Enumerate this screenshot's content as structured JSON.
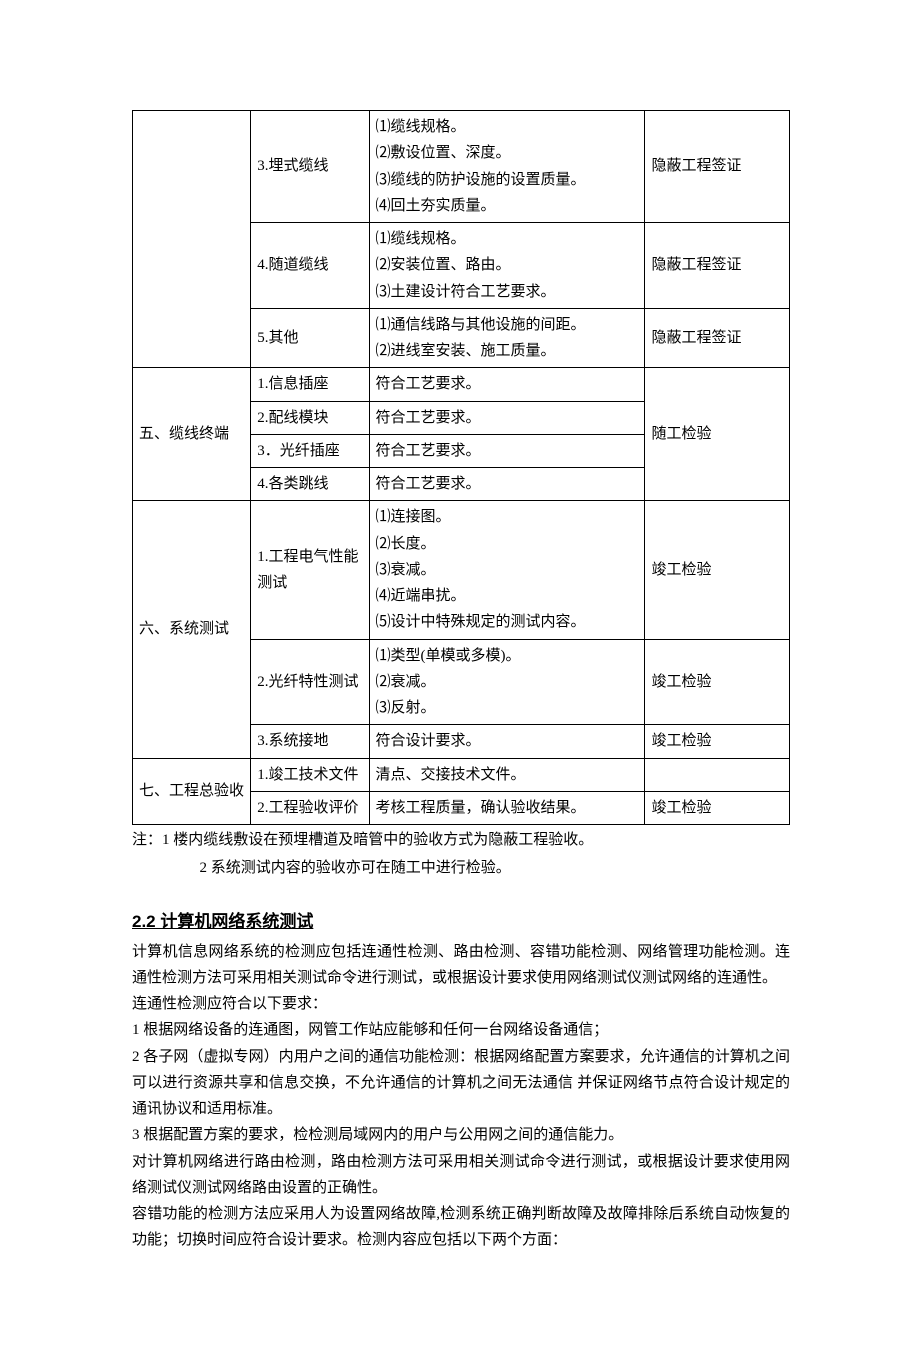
{
  "table": {
    "col_widths": [
      "18%",
      "18%",
      "42%",
      "22%"
    ],
    "border_color": "#000000",
    "font_size": 15,
    "rows": [
      {
        "c1": "",
        "c1_rowspan": 3,
        "c2": "3.埋式缆线",
        "c3": "⑴缆线规格。\n⑵敷设位置、深度。\n⑶缆线的防护设施的设置质量。\n⑷回土夯实质量。",
        "c4": "隐蔽工程签证"
      },
      {
        "c2": "4.随道缆线",
        "c3": "⑴缆线规格。\n⑵安装位置、路由。\n⑶土建设计符合工艺要求。",
        "c4": "隐蔽工程签证"
      },
      {
        "c2": "5.其他",
        "c3": "⑴通信线路与其他设施的间距。\n⑵进线室安装、施工质量。",
        "c4": "隐蔽工程签证"
      },
      {
        "c1": "五、缆线终端",
        "c1_rowspan": 4,
        "c2": "1.信息插座",
        "c3": "符合工艺要求。",
        "c4": "随工检验",
        "c4_rowspan": 4
      },
      {
        "c2": "2.配线模块",
        "c3": "符合工艺要求。"
      },
      {
        "c2": "3．光纤插座",
        "c3": "符合工艺要求。"
      },
      {
        "c2": "4.各类跳线",
        "c3": "符合工艺要求。"
      },
      {
        "c1": "六、系统测试",
        "c1_rowspan": 3,
        "c2": "1.工程电气性能测试",
        "c3": "⑴连接图。\n⑵长度。\n⑶衰减。\n⑷近端串扰。\n⑸设计中特殊规定的测试内容。",
        "c4": "竣工检验"
      },
      {
        "c2": "2.光纤特性测试",
        "c3": "⑴类型(单模或多模)。\n⑵衰减。\n⑶反射。",
        "c4": "竣工检验"
      },
      {
        "c2": "3.系统接地",
        "c3": "符合设计要求。",
        "c4": "竣工检验"
      },
      {
        "c1": "七、工程总验收",
        "c1_rowspan": 2,
        "c2": "1.竣工技术文件",
        "c3": "清点、交接技术文件。",
        "c4": ""
      },
      {
        "c2": "2.工程验收评价",
        "c3": "考核工程质量，确认验收结果。",
        "c4": "竣工检验"
      }
    ]
  },
  "notes": {
    "line1": "注：1 楼内缆线敷设在预埋槽道及暗管中的验收方式为隐蔽工程验收。",
    "line2": "2 系统测试内容的验收亦可在随工中进行检验。"
  },
  "section": {
    "title": "2.2 计算机网络系统测试",
    "paragraphs": [
      "计算机信息网络系统的检测应包括连通性检测、路由检测、容错功能检测、网络管理功能检测。连通性检测方法可采用相关测试命令进行测试，或根据设计要求使用网络测试仪测试网络的连通性。",
      "连通性检测应符合以下要求：",
      "1 根据网络设备的连通图，网管工作站应能够和任何一台网络设备通信；",
      "2 各子网（虚拟专网）内用户之间的通信功能检测：根据网络配置方案要求，允许通信的计算机之间可以进行资源共享和信息交换，不允许通信的计算机之间无法通信 并保证网络节点符合设计规定的通讯协议和适用标准。",
      "3 根据配置方案的要求，检检测局域网内的用户与公用网之间的通信能力。",
      "对计算机网络进行路由检测，路由检测方法可采用相关测试命令进行测试，或根据设计要求使用网络测试仪测试网络路由设置的正确性。",
      "容错功能的检测方法应采用人为设置网络故障,检测系统正确判断故障及故障排除后系统自动恢复的功能；切换时间应符合设计要求。检测内容应包括以下两个方面："
    ]
  }
}
